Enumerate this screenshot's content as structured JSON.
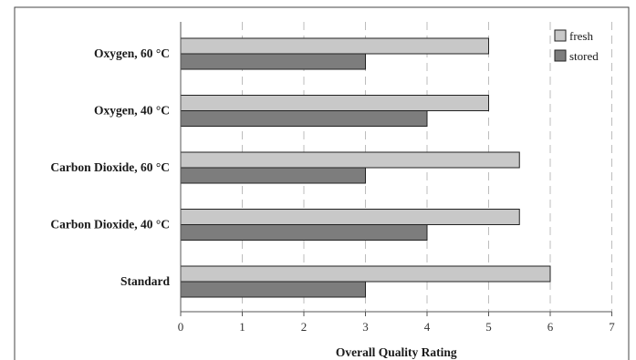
{
  "chart_data": {
    "type": "bar",
    "orientation": "horizontal",
    "title": "",
    "xlabel": "Overall Quality Rating",
    "ylabel": "",
    "categories": [
      "Oxygen, 60 °C",
      "Oxygen, 40 °C",
      "Carbon Dioxide, 60 °C",
      "Carbon Dioxide, 40 °C",
      "Standard"
    ],
    "series": [
      {
        "name": "fresh",
        "values": [
          5,
          5,
          5.5,
          5.5,
          6
        ],
        "color": "#c8c8c8"
      },
      {
        "name": "stored",
        "values": [
          3,
          4,
          3,
          4,
          3
        ],
        "color": "#7d7d7d"
      }
    ],
    "xlim": [
      0,
      7
    ],
    "xticks": [
      "0",
      "1",
      "2",
      "3",
      "4",
      "5",
      "6",
      "7"
    ],
    "grid": "vertical dashed",
    "legend": "top-right"
  }
}
